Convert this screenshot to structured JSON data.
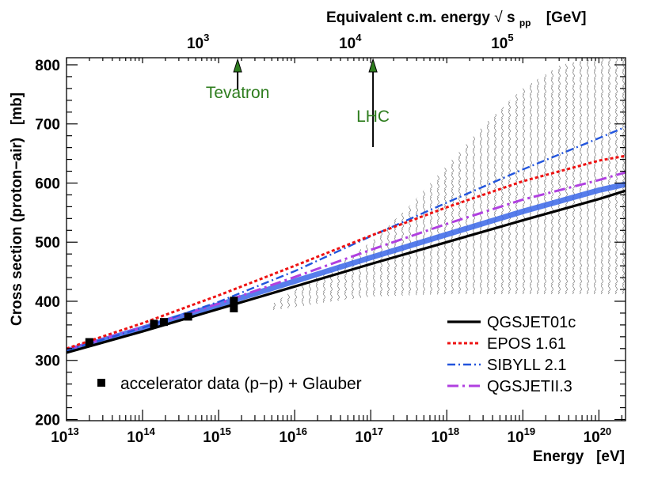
{
  "chart_data": {
    "type": "line",
    "xlabel": "Energy   [eV]",
    "ylabel": "Cross section (proton−air)   [mb]",
    "top_axis_label": "Equivalent c.m. energy",
    "top_axis_sqrt": "√",
    "top_axis_s": "s",
    "top_axis_sub": "pp",
    "top_axis_unit": "[GeV]",
    "x_scale": "log",
    "xlim_log10_eV": [
      13,
      20.35
    ],
    "ylim": [
      198,
      812
    ],
    "x_tick_bases": [
      "10",
      "10",
      "10",
      "10",
      "10",
      "10",
      "10",
      "10"
    ],
    "x_tick_exponents": [
      "13",
      "14",
      "15",
      "16",
      "17",
      "18",
      "19",
      "20"
    ],
    "y_ticks": [
      200,
      300,
      400,
      500,
      600,
      700,
      800
    ],
    "top_ticks": [
      {
        "base": "10",
        "exp": "3",
        "log10_eV": 14.73
      },
      {
        "base": "10",
        "exp": "4",
        "log10_eV": 16.73
      },
      {
        "base": "10",
        "exp": "5",
        "log10_eV": 18.73
      }
    ],
    "annotations": [
      {
        "label": "Tevatron",
        "log10_eV": 15.25,
        "color": "#2e7d1e"
      },
      {
        "label": "LHC",
        "log10_eV": 17.03,
        "color": "#2e7d1e"
      }
    ],
    "uncertainty_band": {
      "x_log10": [
        15.7,
        16.0,
        16.5,
        17.0,
        17.5,
        18.0,
        18.5,
        19.0,
        19.5,
        20.0,
        20.35
      ],
      "upper": [
        395,
        420,
        455,
        500,
        560,
        630,
        700,
        760,
        800,
        812,
        812
      ],
      "lower": [
        385,
        390,
        400,
        408,
        410,
        412,
        412,
        412,
        412,
        412,
        412
      ]
    },
    "series": [
      {
        "name": "QGSJET01c",
        "color": "#000000",
        "style": "solid",
        "x_log10": [
          13,
          14,
          15,
          16,
          17,
          18,
          19,
          20,
          20.35
        ],
        "y": [
          313,
          349,
          387,
          425,
          463,
          500,
          537,
          573,
          587
        ]
      },
      {
        "name": "EPOS 1.61",
        "color": "#ee1111",
        "style": "dotted",
        "x_log10": [
          13,
          14,
          15,
          16,
          17,
          18,
          19,
          20,
          20.35
        ],
        "y": [
          320,
          363,
          410,
          460,
          511,
          559,
          603,
          638,
          646
        ]
      },
      {
        "name": "SIBYLL 2.1",
        "color": "#2255dd",
        "style": "dashdot",
        "x_log10": [
          13,
          14,
          15,
          16,
          17,
          18,
          19,
          20,
          20.35
        ],
        "y": [
          317,
          355,
          399,
          451,
          510,
          567,
          623,
          676,
          695
        ]
      },
      {
        "name": "QGSJETII.3",
        "color": "#b040e0",
        "style": "longdashdot",
        "x_log10": [
          13,
          14,
          15,
          16,
          17,
          18,
          19,
          20,
          20.35
        ],
        "y": [
          318,
          356,
          396,
          441,
          487,
          531,
          572,
          605,
          618
        ]
      },
      {
        "name": "",
        "color": "#3a66e8",
        "style": "thickband",
        "x_log10": [
          13,
          14,
          15,
          16,
          17,
          18,
          19,
          20,
          20.35
        ],
        "y": [
          316,
          354,
          394,
          434,
          474,
          513,
          552,
          588,
          598
        ]
      }
    ],
    "data_points": {
      "label": "accelerator data (p−p) + Glauber",
      "x_log10": [
        13.3,
        14.15,
        14.28,
        14.6,
        15.2,
        15.2
      ],
      "y": [
        331,
        362,
        365,
        374,
        388,
        401
      ]
    },
    "legend_placement": "bottom-right",
    "grid": false
  }
}
